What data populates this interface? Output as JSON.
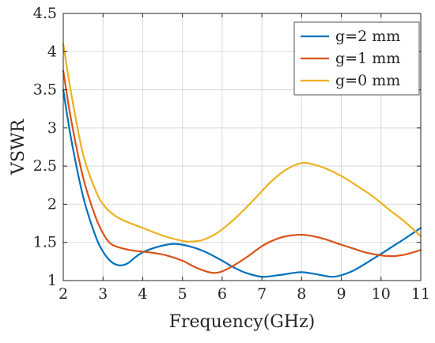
{
  "chart_data": {
    "type": "line",
    "xlabel": "Frequency(GHz)",
    "ylabel": "VSWR",
    "xlim": [
      2,
      11
    ],
    "ylim": [
      1,
      4.5
    ],
    "xticks": [
      2,
      3,
      4,
      5,
      6,
      7,
      8,
      9,
      10,
      11
    ],
    "yticks": [
      1,
      1.5,
      2,
      2.5,
      3,
      3.5,
      4,
      4.5
    ],
    "ytick_labels": [
      "1",
      "1.5",
      "2",
      "2.5",
      "3",
      "3.5",
      "4",
      "4.5"
    ],
    "grid": true,
    "legend_position": "top-right",
    "series": [
      {
        "name": "g=2 mm",
        "color": "#0072BD",
        "x": [
          2,
          2.2,
          2.5,
          2.8,
          3.0,
          3.2,
          3.4,
          3.6,
          3.8,
          4.0,
          4.3,
          4.6,
          4.8,
          5.0,
          5.3,
          5.6,
          6.0,
          6.3,
          6.6,
          7.0,
          7.4,
          7.8,
          8.0,
          8.3,
          8.6,
          8.8,
          9.0,
          9.3,
          9.6,
          10.0,
          10.3,
          10.6,
          11.0
        ],
        "y": [
          3.5,
          2.85,
          2.1,
          1.6,
          1.38,
          1.25,
          1.2,
          1.22,
          1.3,
          1.37,
          1.43,
          1.47,
          1.48,
          1.47,
          1.43,
          1.37,
          1.26,
          1.17,
          1.1,
          1.05,
          1.07,
          1.1,
          1.11,
          1.09,
          1.06,
          1.05,
          1.07,
          1.13,
          1.22,
          1.35,
          1.45,
          1.55,
          1.69
        ]
      },
      {
        "name": "g=1 mm",
        "color": "#D95319",
        "x": [
          2,
          2.2,
          2.5,
          2.8,
          3.0,
          3.2,
          3.5,
          3.8,
          4.0,
          4.3,
          4.6,
          5.0,
          5.3,
          5.6,
          5.8,
          6.0,
          6.3,
          6.6,
          7.0,
          7.3,
          7.6,
          8.0,
          8.3,
          8.6,
          9.0,
          9.3,
          9.6,
          10.0,
          10.3,
          10.6,
          11.0
        ],
        "y": [
          3.75,
          3.1,
          2.35,
          1.85,
          1.62,
          1.48,
          1.42,
          1.39,
          1.38,
          1.36,
          1.33,
          1.26,
          1.18,
          1.12,
          1.1,
          1.12,
          1.2,
          1.3,
          1.45,
          1.53,
          1.58,
          1.6,
          1.58,
          1.54,
          1.47,
          1.42,
          1.37,
          1.33,
          1.32,
          1.34,
          1.4
        ]
      },
      {
        "name": "g=0 mm",
        "color": "#EDB120",
        "x": [
          2,
          2.2,
          2.5,
          2.8,
          3.0,
          3.3,
          3.6,
          4.0,
          4.5,
          5.0,
          5.2,
          5.5,
          5.8,
          6.0,
          6.4,
          6.8,
          7.2,
          7.6,
          8.0,
          8.3,
          8.6,
          9.0,
          9.4,
          9.8,
          10.2,
          10.6,
          11.0
        ],
        "y": [
          4.1,
          3.45,
          2.65,
          2.2,
          2.0,
          1.85,
          1.77,
          1.69,
          1.59,
          1.52,
          1.51,
          1.53,
          1.6,
          1.67,
          1.85,
          2.06,
          2.28,
          2.45,
          2.54,
          2.52,
          2.47,
          2.37,
          2.24,
          2.1,
          1.93,
          1.77,
          1.58
        ]
      }
    ]
  }
}
